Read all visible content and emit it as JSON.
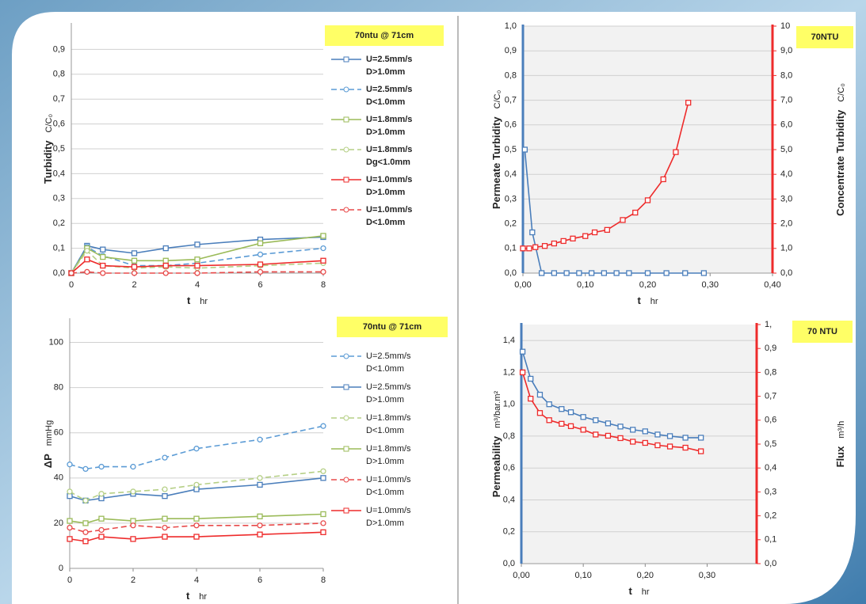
{
  "chart_data": [
    {
      "type": "line",
      "legend_title": "70ntu @ 71cm",
      "ylabel": "Turbidity",
      "yunit": "C/C₀",
      "xlabel": "t",
      "xunit": "hr",
      "grid": true,
      "xlim": [
        0,
        8
      ],
      "xticks": [
        0,
        2,
        4,
        6,
        8
      ],
      "ylim": [
        0,
        1.0
      ],
      "yticks": [
        {
          "value": 0,
          "label": "0,0"
        },
        {
          "value": 0.1,
          "label": "0,1"
        },
        {
          "value": 0.2,
          "label": "0,2"
        },
        {
          "value": 0.3,
          "label": "0,3"
        },
        {
          "value": 0.4,
          "label": "0,4"
        },
        {
          "value": 0.5,
          "label": "0,5"
        },
        {
          "value": 0.6,
          "label": "0,6"
        },
        {
          "value": 0.7,
          "label": "0,7"
        },
        {
          "value": 0.8,
          "label": "0,8"
        },
        {
          "value": 0.9,
          "label": "0,9"
        }
      ],
      "x": [
        0,
        0.5,
        1,
        2,
        3,
        4,
        6,
        8
      ],
      "series": [
        {
          "name": [
            "U=2.5mm/s",
            "D>1.0mm"
          ],
          "color": "#4a7ebb",
          "dash": false,
          "marker": "square",
          "values": [
            0,
            0.11,
            0.095,
            0.08,
            0.1,
            0.115,
            0.135,
            0.145
          ]
        },
        {
          "name": [
            "U=2.5mm/s",
            "D<1.0mm"
          ],
          "color": "#5b9bd5",
          "dash": true,
          "marker": "circle",
          "values": [
            0,
            0.105,
            0.07,
            0.03,
            0.03,
            0.04,
            0.075,
            0.1
          ]
        },
        {
          "name": [
            "U=1.8mm/s",
            "D>1.0mm"
          ],
          "color": "#9bbb59",
          "dash": false,
          "marker": "square",
          "values": [
            0,
            0.1,
            0.065,
            0.05,
            0.05,
            0.055,
            0.12,
            0.15
          ]
        },
        {
          "name": [
            "U=1.8mm/s",
            "Dg<1.0mm"
          ],
          "color": "#b5cf85",
          "dash": true,
          "marker": "circle",
          "values": [
            0,
            0.09,
            0.03,
            0.02,
            0.025,
            0.02,
            0.03,
            0.04
          ]
        },
        {
          "name": [
            "U=1.0mm/s",
            "D>1.0mm"
          ],
          "color": "#ee2b2b",
          "dash": false,
          "marker": "square",
          "values": [
            0,
            0.055,
            0.03,
            0.025,
            0.03,
            0.03,
            0.035,
            0.05
          ]
        },
        {
          "name": [
            "U=1.0mm/s",
            "D<1.0mm"
          ],
          "color": "#e84a4a",
          "dash": true,
          "marker": "circle",
          "values": [
            0,
            0.005,
            0,
            0,
            0,
            0,
            0.005,
            0.005
          ]
        }
      ]
    },
    {
      "type": "line",
      "legend_title": "70NTU",
      "ylabel": "Permeate Turbidity",
      "yunit": "C/C₀",
      "y2label": "Concentrate Turbidity",
      "y2unit": "C/C₀",
      "xlabel": "t",
      "xunit": "hr",
      "grid": true,
      "xlim": [
        0,
        0.4
      ],
      "xticks": [
        {
          "value": 0,
          "label": "0,00"
        },
        {
          "value": 0.1,
          "label": "0,10"
        },
        {
          "value": 0.2,
          "label": "0,20"
        },
        {
          "value": 0.3,
          "label": "0,30"
        },
        {
          "value": 0.4,
          "label": "0,40"
        }
      ],
      "ylim": [
        0,
        1.0
      ],
      "yticks": [
        {
          "value": 0,
          "label": "0,0"
        },
        {
          "value": 0.1,
          "label": "0,1"
        },
        {
          "value": 0.2,
          "label": "0,2"
        },
        {
          "value": 0.3,
          "label": "0,3"
        },
        {
          "value": 0.4,
          "label": "0,4"
        },
        {
          "value": 0.5,
          "label": "0,5"
        },
        {
          "value": 0.6,
          "label": "0,6"
        },
        {
          "value": 0.7,
          "label": "0,7"
        },
        {
          "value": 0.8,
          "label": "0,8"
        },
        {
          "value": 0.9,
          "label": "0,9"
        },
        {
          "value": 1.0,
          "label": "1,0"
        }
      ],
      "y2lim": [
        0,
        10
      ],
      "y2ticks": [
        {
          "value": 0,
          "label": "0,0"
        },
        {
          "value": 1,
          "label": "1,0"
        },
        {
          "value": 2,
          "label": "2,0"
        },
        {
          "value": 3,
          "label": "3,0"
        },
        {
          "value": 4,
          "label": "4,0"
        },
        {
          "value": 5,
          "label": "5,0"
        },
        {
          "value": 6,
          "label": "6,0"
        },
        {
          "value": 7,
          "label": "7,0"
        },
        {
          "value": 8,
          "label": "8,0"
        },
        {
          "value": 9,
          "label": "9,0"
        },
        10
      ],
      "series": [
        {
          "color": "#4a7ebb",
          "dash": false,
          "marker": "square",
          "x": [
            0.003,
            0.015,
            0.03,
            0.05,
            0.07,
            0.09,
            0.11,
            0.13,
            0.15,
            0.17,
            0.2,
            0.23,
            0.26,
            0.29
          ],
          "values": [
            0.5,
            0.165,
            0,
            0,
            0,
            0,
            0,
            0,
            0,
            0,
            0,
            0,
            0,
            0
          ]
        },
        {
          "color": "#ee2b2b",
          "dash": false,
          "marker": "square",
          "axis": "y2",
          "x": [
            0,
            0.01,
            0.02,
            0.035,
            0.05,
            0.065,
            0.08,
            0.1,
            0.115,
            0.135,
            0.16,
            0.18,
            0.2,
            0.225,
            0.245,
            0.265
          ],
          "values": [
            1.0,
            1.0,
            1.05,
            1.1,
            1.2,
            1.3,
            1.4,
            1.5,
            1.65,
            1.75,
            2.15,
            2.45,
            2.95,
            3.8,
            4.9,
            6.9
          ]
        }
      ]
    },
    {
      "type": "line",
      "legend_title": "70ntu @ 71cm",
      "ylabel": "ΔP",
      "yunit": "mmHg",
      "xlabel": "t",
      "xunit": "hr",
      "grid": true,
      "xlim": [
        0,
        8
      ],
      "xticks": [
        0,
        2,
        4,
        6,
        8
      ],
      "ylim": [
        0,
        110
      ],
      "yticks": [
        0,
        20,
        40,
        60,
        80,
        100
      ],
      "x": [
        0,
        0.5,
        1,
        2,
        3,
        4,
        6,
        8
      ],
      "series": [
        {
          "name": [
            "U=2.5mm/s",
            "D<1.0mm"
          ],
          "color": "#5b9bd5",
          "dash": true,
          "marker": "circle",
          "values": [
            46,
            44,
            45,
            45,
            49,
            53,
            57,
            63
          ]
        },
        {
          "name": [
            "U=2.5mm/s",
            "D>1.0mm"
          ],
          "color": "#4a7ebb",
          "dash": false,
          "marker": "square",
          "values": [
            32,
            30,
            31,
            33,
            32,
            35,
            37,
            40
          ]
        },
        {
          "name": [
            "U=1.8mm/s",
            "D<1.0mm"
          ],
          "color": "#b5cf85",
          "dash": true,
          "marker": "circle",
          "values": [
            34,
            30,
            33,
            34,
            35,
            37,
            40,
            43
          ]
        },
        {
          "name": [
            "U=1.8mm/s",
            "D>1.0mm"
          ],
          "color": "#9bbb59",
          "dash": false,
          "marker": "square",
          "values": [
            21,
            20,
            22,
            21,
            22,
            22,
            23,
            24
          ]
        },
        {
          "name": [
            "U=1.0mm/s",
            "D<1.0mm"
          ],
          "color": "#e84a4a",
          "dash": true,
          "marker": "circle",
          "values": [
            18,
            16,
            17,
            19,
            18,
            19,
            19,
            20
          ]
        },
        {
          "name": [
            "U=1.0mm/s",
            "D>1.0mm"
          ],
          "color": "#ee2b2b",
          "dash": false,
          "marker": "square",
          "values": [
            13,
            12,
            14,
            13,
            14,
            14,
            15,
            16
          ]
        }
      ]
    },
    {
      "type": "line",
      "legend_title": "70 NTU",
      "ylabel": "Permeability",
      "yunit": "m³/bar.m²",
      "y2label": "Flux",
      "y2unit": "m³/h",
      "xlabel": "t",
      "xunit": "hr",
      "grid": true,
      "xlim": [
        0,
        0.38
      ],
      "xticks": [
        {
          "value": 0,
          "label": "0,00"
        },
        {
          "value": 0.1,
          "label": "0,10"
        },
        {
          "value": 0.2,
          "label": "0,20"
        },
        {
          "value": 0.3,
          "label": "0,30"
        }
      ],
      "ylim": [
        0,
        1.5
      ],
      "yticks": [
        {
          "value": 0,
          "label": "0,0"
        },
        {
          "value": 0.2,
          "label": "0,2"
        },
        {
          "value": 0.4,
          "label": "0,4"
        },
        {
          "value": 0.6,
          "label": "0,6"
        },
        {
          "value": 0.8,
          "label": "0,8"
        },
        {
          "value": 1.0,
          "label": "1,0"
        },
        {
          "value": 1.2,
          "label": "1,2"
        },
        {
          "value": 1.4,
          "label": "1,4"
        }
      ],
      "y2lim": [
        0,
        1.0
      ],
      "y2ticks": [
        {
          "value": 0,
          "label": "0,0"
        },
        {
          "value": 0.1,
          "label": "0,1"
        },
        {
          "value": 0.2,
          "label": "0,2"
        },
        {
          "value": 0.3,
          "label": "0,3"
        },
        {
          "value": 0.4,
          "label": "0,4"
        },
        {
          "value": 0.5,
          "label": "0,5"
        },
        {
          "value": 0.6,
          "label": "0,6"
        },
        {
          "value": 0.7,
          "label": "0,7"
        },
        {
          "value": 0.8,
          "label": "0,8"
        },
        {
          "value": 0.9,
          "label": "0,9"
        },
        {
          "value": 1.0,
          "label": "1,"
        }
      ],
      "series": [
        {
          "color": "#4a7ebb",
          "dash": false,
          "marker": "square",
          "x": [
            0.002,
            0.015,
            0.03,
            0.045,
            0.065,
            0.08,
            0.1,
            0.12,
            0.14,
            0.16,
            0.18,
            0.2,
            0.22,
            0.24,
            0.265,
            0.29
          ],
          "values": [
            1.33,
            1.16,
            1.06,
            1.0,
            0.97,
            0.95,
            0.92,
            0.9,
            0.88,
            0.86,
            0.84,
            0.83,
            0.81,
            0.8,
            0.79,
            0.79
          ]
        },
        {
          "color": "#ee2b2b",
          "dash": false,
          "marker": "square",
          "axis": "y2",
          "x": [
            0.002,
            0.015,
            0.03,
            0.045,
            0.065,
            0.08,
            0.1,
            0.12,
            0.14,
            0.16,
            0.18,
            0.2,
            0.22,
            0.24,
            0.265,
            0.29
          ],
          "values": [
            0.8,
            0.69,
            0.63,
            0.6,
            0.585,
            0.575,
            0.56,
            0.54,
            0.535,
            0.525,
            0.51,
            0.505,
            0.495,
            0.49,
            0.485,
            0.47
          ]
        }
      ]
    }
  ]
}
